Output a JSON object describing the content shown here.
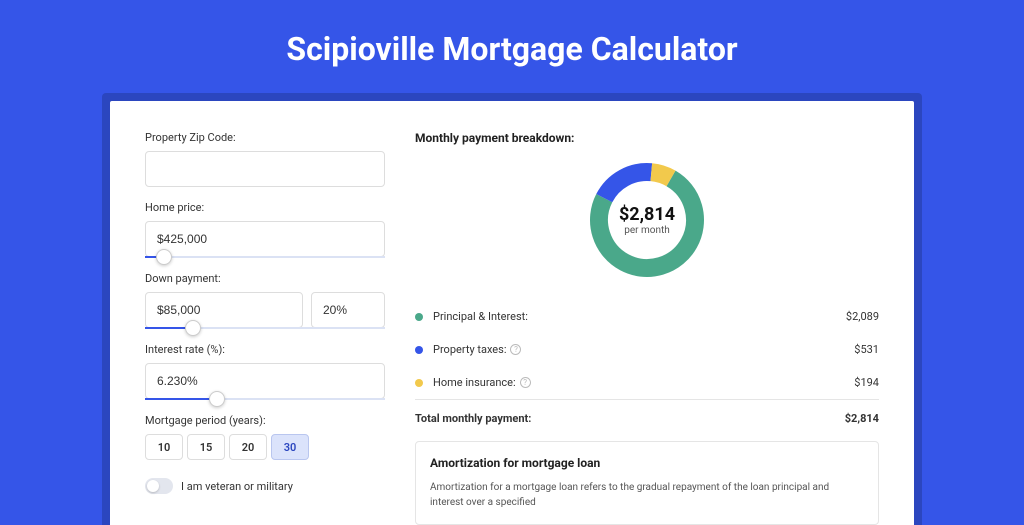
{
  "title": "Scipioville Mortgage Calculator",
  "colors": {
    "page_bg": "#3555e8",
    "shadow_bg": "#2b46bf",
    "card_bg": "#ffffff",
    "accent": "#3555e8"
  },
  "form": {
    "zip": {
      "label": "Property Zip Code:",
      "value": ""
    },
    "home_price": {
      "label": "Home price:",
      "value": "$425,000",
      "slider_pct": 8
    },
    "down_payment": {
      "label": "Down payment:",
      "amount": "$85,000",
      "pct": "20%",
      "slider_pct": 20
    },
    "interest_rate": {
      "label": "Interest rate (%):",
      "value": "6.230%",
      "slider_pct": 30
    },
    "period": {
      "label": "Mortgage period (years):",
      "options": [
        "10",
        "15",
        "20",
        "30"
      ],
      "selected": "30"
    },
    "veteran": {
      "label": "I am veteran or military",
      "checked": false
    }
  },
  "breakdown": {
    "title": "Monthly payment breakdown:",
    "total_amount": "$2,814",
    "total_sub": "per month",
    "donut": {
      "stroke_width": 18,
      "segments": [
        {
          "key": "principal_interest",
          "color": "#4aa88a",
          "fraction": 0.742
        },
        {
          "key": "property_taxes",
          "color": "#3555e8",
          "fraction": 0.189
        },
        {
          "key": "home_insurance",
          "color": "#f2c94c",
          "fraction": 0.069
        }
      ],
      "start_angle_deg": -60
    },
    "rows": [
      {
        "dot": "#4aa88a",
        "label": "Principal & Interest:",
        "help": false,
        "value": "$2,089"
      },
      {
        "dot": "#3555e8",
        "label": "Property taxes:",
        "help": true,
        "value": "$531"
      },
      {
        "dot": "#f2c94c",
        "label": "Home insurance:",
        "help": true,
        "value": "$194"
      }
    ],
    "total_row": {
      "label": "Total monthly payment:",
      "value": "$2,814"
    }
  },
  "amortization": {
    "title": "Amortization for mortgage loan",
    "text": "Amortization for a mortgage loan refers to the gradual repayment of the loan principal and interest over a specified"
  }
}
